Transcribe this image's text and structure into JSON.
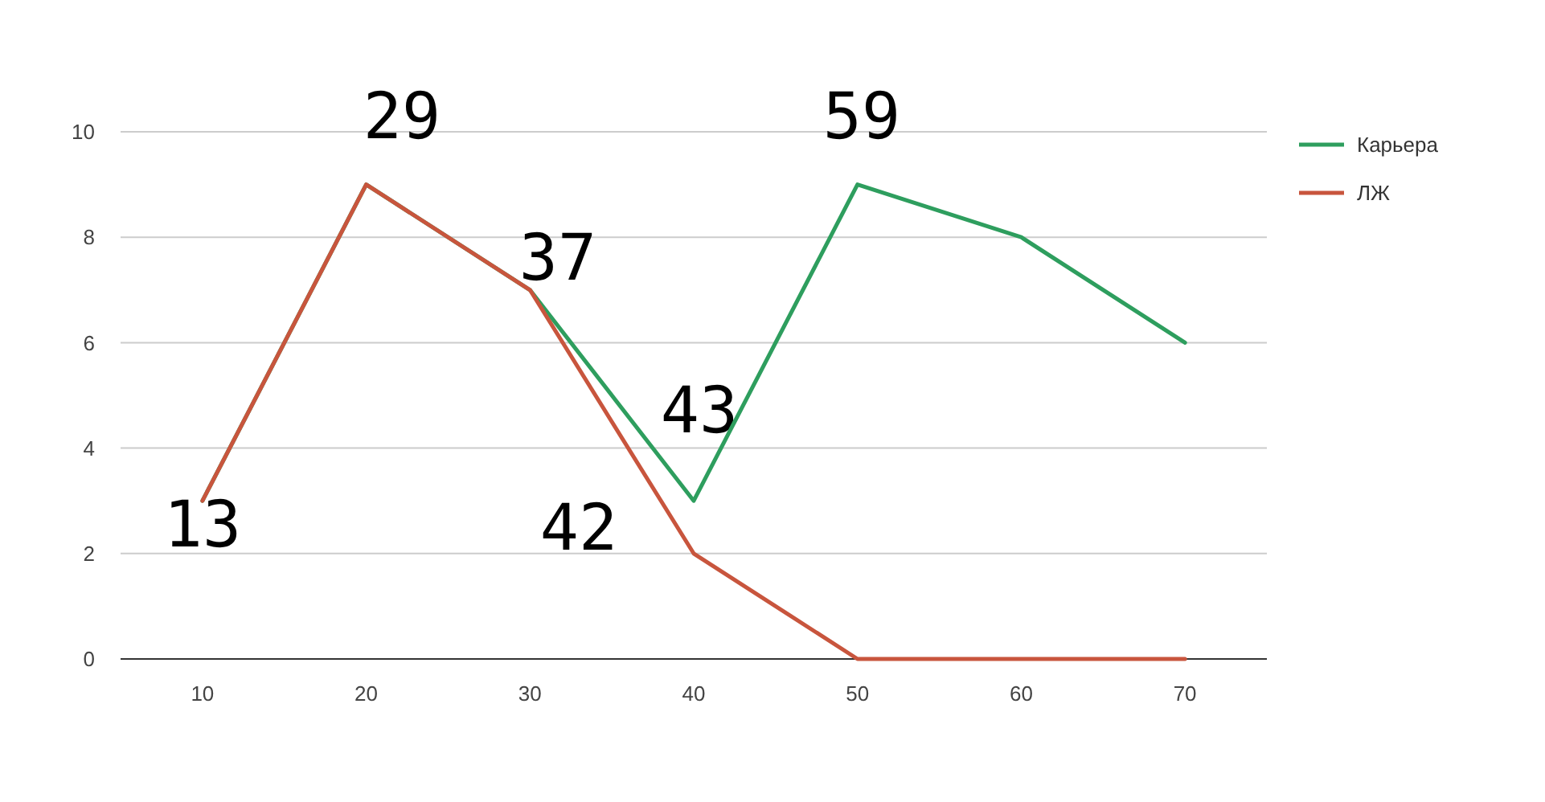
{
  "chart_data": {
    "type": "line",
    "x": [
      10,
      20,
      30,
      40,
      50,
      60,
      70
    ],
    "series": [
      {
        "name": "Карьера",
        "color": "#2e9e5e",
        "values": [
          3,
          9,
          7,
          3,
          9,
          8,
          6
        ]
      },
      {
        "name": "ЛЖ",
        "color": "#c8553d",
        "values": [
          3,
          9,
          7,
          2,
          0,
          0,
          0
        ]
      }
    ],
    "xlim": [
      5,
      75
    ],
    "ylim": [
      0,
      10
    ],
    "xticks": [
      10,
      20,
      30,
      40,
      50,
      60,
      70
    ],
    "yticks": [
      0,
      2,
      4,
      6,
      8,
      10
    ],
    "grid": "y",
    "legend": "right",
    "marker": "none",
    "line_style": "solid",
    "annotations": [
      "13",
      "29",
      "37",
      "43",
      "42",
      "59"
    ]
  }
}
